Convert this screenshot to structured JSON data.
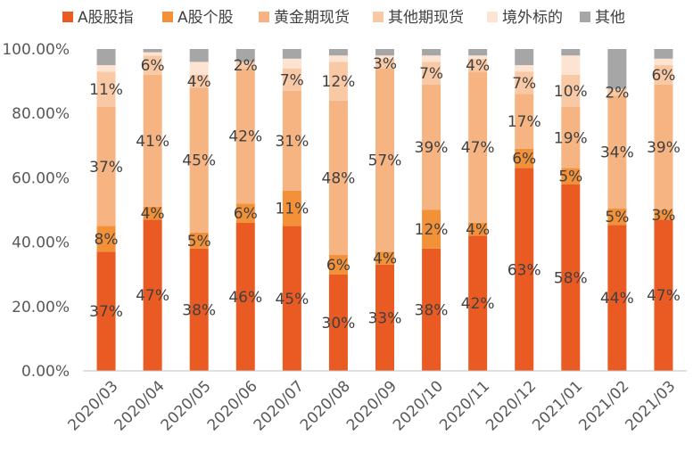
{
  "chart_data": {
    "type": "bar",
    "stacked": true,
    "title": "",
    "xlabel": "",
    "ylabel": "",
    "ylim": [
      0,
      100
    ],
    "y_ticks": [
      "0.00%",
      "20.00%",
      "40.00%",
      "60.00%",
      "80.00%",
      "100.00%"
    ],
    "grid": false,
    "legend_position": "top",
    "categories": [
      "2020/03",
      "2020/04",
      "2020/05",
      "2020/06",
      "2020/07",
      "2020/08",
      "2020/09",
      "2020/10",
      "2020/11",
      "2020/12",
      "2021/01",
      "2021/02",
      "2021/03"
    ],
    "series": [
      {
        "name": "A股股指",
        "color": "#ea5b24",
        "values": [
          37,
          47,
          38,
          46,
          45,
          30,
          33,
          38,
          42,
          63,
          58,
          44,
          47
        ],
        "labels": [
          "37%",
          "47%",
          "38%",
          "46%",
          "45%",
          "30%",
          "33%",
          "38%",
          "42%",
          "63%",
          "58%",
          "44%",
          "47%"
        ]
      },
      {
        "name": "A股个股",
        "color": "#f39139",
        "values": [
          8,
          4,
          5,
          6,
          11,
          6,
          4,
          12,
          4,
          6,
          5,
          5,
          3
        ],
        "labels": [
          "8%",
          "4%",
          "5%",
          "6%",
          "11%",
          "6%",
          "4%",
          "12%",
          "4%",
          "6%",
          "5%",
          "5%",
          "3%"
        ]
      },
      {
        "name": "黄金期现货",
        "color": "#f7b483",
        "values": [
          37,
          41,
          45,
          42,
          31,
          48,
          57,
          39,
          47,
          17,
          19,
          34,
          39
        ],
        "labels": [
          "37%",
          "41%",
          "45%",
          "42%",
          "31%",
          "48%",
          "57%",
          "39%",
          "47%",
          "17%",
          "19%",
          "34%",
          "39%"
        ]
      },
      {
        "name": "其他期现货",
        "color": "#f9c9a6",
        "values": [
          11,
          6,
          4,
          2,
          7,
          12,
          3,
          7,
          4,
          7,
          10,
          2,
          6
        ],
        "labels": [
          "11%",
          "6%",
          "4%",
          "2%",
          "7%",
          "12%",
          "3%",
          "7%",
          "4%",
          "7%",
          "10%",
          "2%",
          "6%"
        ]
      },
      {
        "name": "境外标的",
        "color": "#fce3d2",
        "values": [
          2,
          1,
          4,
          0,
          3,
          2,
          1,
          2,
          1,
          2,
          6,
          0,
          2
        ],
        "labels": [
          "",
          "",
          "",
          "",
          "",
          "",
          "",
          "",
          "",
          "",
          "",
          "",
          ""
        ]
      },
      {
        "name": "其他",
        "color": "#a6a6a6",
        "values": [
          5,
          1,
          4,
          4,
          3,
          2,
          2,
          2,
          2,
          5,
          2,
          12,
          3
        ],
        "labels": [
          "",
          "",
          "",
          "",
          "",
          "",
          "",
          "",
          "",
          "",
          "",
          "",
          ""
        ]
      }
    ]
  }
}
